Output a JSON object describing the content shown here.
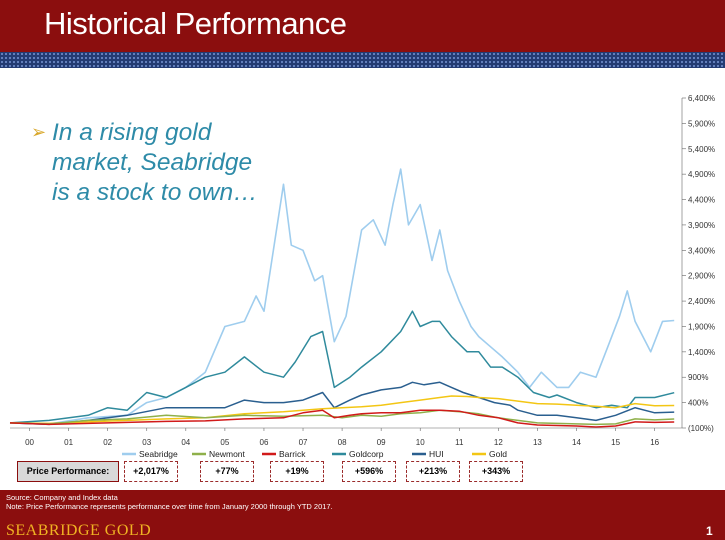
{
  "slide": {
    "title": "Historical Performance",
    "headline": "In a rising gold market, Seabridge is a stock to own…",
    "source_line": "Source:  Company  and  Index  data",
    "note_line": "Note: Price Performance  represents  performance  over time from January  2000 through YTD 2017.",
    "brand": "SEABRIDGE GOLD",
    "page_number": "1"
  },
  "colors": {
    "Seabridge": "#9fcdee",
    "Newmont": "#8fb04a",
    "Barrick": "#d11a1a",
    "Goldcorp": "#2f8a9c",
    "HUI": "#2a5f8f",
    "Gold": "#f3c614",
    "header": "#8b0e0e",
    "accent": "#2e8ba8"
  },
  "performance": {
    "label": "Price Performance:",
    "values": [
      "+2,017%",
      "+77%",
      "+19%",
      "+596%",
      "+213%",
      "+343%"
    ]
  },
  "chart_data": {
    "type": "line",
    "x_ticks": [
      "00",
      "01",
      "02",
      "03",
      "04",
      "05",
      "06",
      "07",
      "08",
      "09",
      "10",
      "11",
      "12",
      "13",
      "14",
      "15",
      "16"
    ],
    "xlim": [
      2000.0,
      2017.2
    ],
    "ylim": [
      -100,
      6400
    ],
    "y_ticks": [
      -100,
      400,
      900,
      1400,
      1900,
      2400,
      2900,
      3400,
      3900,
      4400,
      4900,
      5400,
      5900,
      6400
    ],
    "y_tick_labels": [
      "(100%)",
      "400%",
      "900%",
      "1,400%",
      "1,900%",
      "2,400%",
      "2,900%",
      "3,400%",
      "3,900%",
      "4,400%",
      "4,900%",
      "5,400%",
      "5,900%",
      "6,400%"
    ],
    "legend_position": "bottom",
    "series": [
      {
        "name": "Seabridge",
        "color_key": "Seabridge",
        "points": [
          [
            2000,
            0
          ],
          [
            2001,
            -20
          ],
          [
            2002,
            100
          ],
          [
            2003,
            150
          ],
          [
            2003.5,
            400
          ],
          [
            2004,
            500
          ],
          [
            2004.5,
            700
          ],
          [
            2005,
            1000
          ],
          [
            2005.5,
            1900
          ],
          [
            2006,
            2000
          ],
          [
            2006.3,
            2500
          ],
          [
            2006.5,
            2200
          ],
          [
            2006.7,
            3200
          ],
          [
            2007,
            4700
          ],
          [
            2007.2,
            3500
          ],
          [
            2007.5,
            3400
          ],
          [
            2007.8,
            2800
          ],
          [
            2008,
            2900
          ],
          [
            2008.3,
            1600
          ],
          [
            2008.6,
            2100
          ],
          [
            2009,
            3800
          ],
          [
            2009.3,
            4000
          ],
          [
            2009.6,
            3500
          ],
          [
            2009.8,
            4300
          ],
          [
            2010,
            5000
          ],
          [
            2010.2,
            3900
          ],
          [
            2010.5,
            4300
          ],
          [
            2010.8,
            3200
          ],
          [
            2011,
            3800
          ],
          [
            2011.2,
            3000
          ],
          [
            2011.5,
            2400
          ],
          [
            2011.8,
            1900
          ],
          [
            2012,
            1700
          ],
          [
            2012.3,
            1500
          ],
          [
            2012.6,
            1300
          ],
          [
            2013,
            1000
          ],
          [
            2013.3,
            700
          ],
          [
            2013.6,
            1000
          ],
          [
            2014,
            700
          ],
          [
            2014.3,
            700
          ],
          [
            2014.6,
            1000
          ],
          [
            2015,
            900
          ],
          [
            2015.3,
            1500
          ],
          [
            2015.6,
            2100
          ],
          [
            2015.8,
            2600
          ],
          [
            2016,
            2000
          ],
          [
            2016.4,
            1400
          ],
          [
            2016.7,
            2000
          ],
          [
            2017.0,
            2017
          ]
        ]
      },
      {
        "name": "Goldcorp",
        "color_key": "Goldcorp",
        "points": [
          [
            2000,
            0
          ],
          [
            2001,
            50
          ],
          [
            2002,
            150
          ],
          [
            2002.5,
            300
          ],
          [
            2003,
            250
          ],
          [
            2003.5,
            600
          ],
          [
            2004,
            500
          ],
          [
            2004.5,
            700
          ],
          [
            2005,
            900
          ],
          [
            2005.5,
            1000
          ],
          [
            2006,
            1300
          ],
          [
            2006.5,
            1000
          ],
          [
            2007,
            900
          ],
          [
            2007.3,
            1200
          ],
          [
            2007.7,
            1700
          ],
          [
            2008,
            1800
          ],
          [
            2008.3,
            700
          ],
          [
            2008.7,
            900
          ],
          [
            2009,
            1100
          ],
          [
            2009.5,
            1400
          ],
          [
            2010,
            1800
          ],
          [
            2010.3,
            2200
          ],
          [
            2010.5,
            1900
          ],
          [
            2010.8,
            2000
          ],
          [
            2011,
            2000
          ],
          [
            2011.3,
            1700
          ],
          [
            2011.7,
            1400
          ],
          [
            2012,
            1400
          ],
          [
            2012.3,
            1100
          ],
          [
            2012.6,
            1100
          ],
          [
            2013,
            900
          ],
          [
            2013.4,
            600
          ],
          [
            2013.8,
            500
          ],
          [
            2014,
            550
          ],
          [
            2014.5,
            400
          ],
          [
            2015,
            300
          ],
          [
            2015.4,
            350
          ],
          [
            2015.8,
            300
          ],
          [
            2016,
            500
          ],
          [
            2016.5,
            500
          ],
          [
            2017.0,
            596
          ]
        ]
      },
      {
        "name": "HUI",
        "color_key": "HUI",
        "points": [
          [
            2000,
            0
          ],
          [
            2001,
            -30
          ],
          [
            2002,
            50
          ],
          [
            2003,
            150
          ],
          [
            2004,
            300
          ],
          [
            2005,
            300
          ],
          [
            2005.5,
            300
          ],
          [
            2006,
            450
          ],
          [
            2006.5,
            400
          ],
          [
            2007,
            400
          ],
          [
            2007.5,
            450
          ],
          [
            2008,
            600
          ],
          [
            2008.3,
            300
          ],
          [
            2008.7,
            450
          ],
          [
            2009,
            550
          ],
          [
            2009.5,
            650
          ],
          [
            2010,
            700
          ],
          [
            2010.3,
            800
          ],
          [
            2010.6,
            750
          ],
          [
            2011,
            800
          ],
          [
            2011.3,
            700
          ],
          [
            2011.6,
            600
          ],
          [
            2012,
            500
          ],
          [
            2012.4,
            400
          ],
          [
            2012.8,
            350
          ],
          [
            2013,
            250
          ],
          [
            2013.5,
            150
          ],
          [
            2014,
            150
          ],
          [
            2014.5,
            100
          ],
          [
            2015,
            50
          ],
          [
            2015.5,
            150
          ],
          [
            2016,
            300
          ],
          [
            2016.5,
            200
          ],
          [
            2017.0,
            213
          ]
        ]
      },
      {
        "name": "Gold",
        "color_key": "Gold",
        "points": [
          [
            2000,
            0
          ],
          [
            2001,
            -10
          ],
          [
            2002,
            20
          ],
          [
            2003,
            50
          ],
          [
            2004,
            80
          ],
          [
            2005,
            100
          ],
          [
            2006,
            180
          ],
          [
            2007,
            220
          ],
          [
            2008,
            280
          ],
          [
            2008.5,
            300
          ],
          [
            2009,
            320
          ],
          [
            2009.5,
            350
          ],
          [
            2010,
            400
          ],
          [
            2010.5,
            450
          ],
          [
            2011,
            500
          ],
          [
            2011.3,
            530
          ],
          [
            2011.7,
            520
          ],
          [
            2012,
            500
          ],
          [
            2012.5,
            480
          ],
          [
            2013,
            430
          ],
          [
            2013.5,
            380
          ],
          [
            2014,
            370
          ],
          [
            2014.5,
            350
          ],
          [
            2015,
            330
          ],
          [
            2015.5,
            300
          ],
          [
            2016,
            380
          ],
          [
            2016.5,
            340
          ],
          [
            2017.0,
            343
          ]
        ]
      },
      {
        "name": "Newmont",
        "color_key": "Newmont",
        "points": [
          [
            2000,
            0
          ],
          [
            2001,
            -20
          ],
          [
            2002,
            50
          ],
          [
            2003,
            80
          ],
          [
            2004,
            150
          ],
          [
            2005,
            100
          ],
          [
            2006,
            150
          ],
          [
            2007,
            130
          ],
          [
            2008,
            150
          ],
          [
            2008.5,
            100
          ],
          [
            2009,
            150
          ],
          [
            2009.5,
            130
          ],
          [
            2010,
            180
          ],
          [
            2010.5,
            200
          ],
          [
            2011,
            250
          ],
          [
            2011.5,
            220
          ],
          [
            2012,
            180
          ],
          [
            2012.5,
            100
          ],
          [
            2013,
            50
          ],
          [
            2013.5,
            0
          ],
          [
            2014,
            -10
          ],
          [
            2014.5,
            -20
          ],
          [
            2015,
            -30
          ],
          [
            2015.5,
            -20
          ],
          [
            2016,
            80
          ],
          [
            2016.5,
            60
          ],
          [
            2017.0,
            77
          ]
        ]
      },
      {
        "name": "Barrick",
        "color_key": "Barrick",
        "points": [
          [
            2000,
            0
          ],
          [
            2001,
            -30
          ],
          [
            2002,
            -10
          ],
          [
            2003,
            10
          ],
          [
            2004,
            30
          ],
          [
            2005,
            40
          ],
          [
            2006,
            80
          ],
          [
            2007,
            100
          ],
          [
            2007.5,
            200
          ],
          [
            2008,
            250
          ],
          [
            2008.3,
            100
          ],
          [
            2008.7,
            150
          ],
          [
            2009,
            180
          ],
          [
            2009.5,
            200
          ],
          [
            2010,
            200
          ],
          [
            2010.5,
            250
          ],
          [
            2011,
            250
          ],
          [
            2011.5,
            230
          ],
          [
            2012,
            150
          ],
          [
            2012.5,
            100
          ],
          [
            2013,
            0
          ],
          [
            2013.5,
            -40
          ],
          [
            2014,
            -50
          ],
          [
            2014.5,
            -60
          ],
          [
            2015,
            -80
          ],
          [
            2015.5,
            -60
          ],
          [
            2016,
            20
          ],
          [
            2016.5,
            10
          ],
          [
            2017.0,
            19
          ]
        ]
      }
    ]
  }
}
